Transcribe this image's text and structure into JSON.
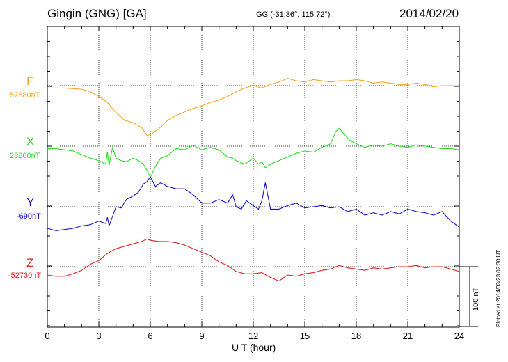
{
  "header": {
    "station": "Gingin (GNG)  [GA]",
    "coords": "GG (-31.36°, 115.72°)",
    "date": "2014/02/20"
  },
  "components": [
    {
      "id": "F",
      "label": "F",
      "baseline": "57880nT",
      "color": "#f5a623"
    },
    {
      "id": "X",
      "label": "X",
      "baseline": "23860nT",
      "color": "#22dd22"
    },
    {
      "id": "Y",
      "label": "Y",
      "baseline": "-690nT",
      "color": "#1010cc"
    },
    {
      "id": "Z",
      "label": "Z",
      "baseline": "-52730nT",
      "color": "#e02020"
    }
  ],
  "xaxis": {
    "label": "U T (hour)",
    "ticks": [
      "0",
      "3",
      "6",
      "9",
      "12",
      "15",
      "18",
      "21",
      "24"
    ]
  },
  "scale_bar": {
    "label": "100 nT",
    "value_nT": 100
  },
  "footer": {
    "plotted": "Plotted at 2014/03/23 02:30 UT"
  },
  "chart_data": {
    "type": "line",
    "x_unit": "hour UT",
    "xlim": [
      0,
      24
    ],
    "y_unit": "nT offset from baseline",
    "series": [
      {
        "name": "F",
        "x": [
          0,
          1,
          2,
          2.5,
          3,
          3.5,
          4,
          4.5,
          5,
          5.5,
          5.8,
          6,
          6.5,
          7,
          7.5,
          8,
          8.5,
          9,
          9.5,
          10,
          10.5,
          11,
          11.5,
          12,
          12.5,
          13,
          13.5,
          14,
          14.5,
          15,
          15.5,
          16,
          16.5,
          17,
          17.5,
          18,
          18.5,
          19,
          19.5,
          20,
          20.5,
          21,
          21.5,
          22,
          22.5,
          23,
          23.5,
          24
        ],
        "y": [
          -4,
          -4,
          -6,
          -10,
          -18,
          -28,
          -45,
          -58,
          -62,
          -70,
          -83,
          -82,
          -72,
          -58,
          -50,
          -44,
          -38,
          -34,
          -28,
          -24,
          -18,
          -10,
          -4,
          0,
          -4,
          2,
          6,
          12,
          8,
          6,
          10,
          8,
          6,
          8,
          8,
          10,
          8,
          4,
          6,
          4,
          2,
          2,
          4,
          2,
          -2,
          0,
          0,
          0
        ]
      },
      {
        "name": "X",
        "x": [
          0,
          0.5,
          1,
          1.5,
          2,
          2.5,
          3,
          3.4,
          3.5,
          3.6,
          3.8,
          4,
          4.3,
          4.6,
          5,
          5.3,
          5.6,
          5.8,
          6,
          6.3,
          6.6,
          7,
          7.5,
          8,
          8.5,
          9,
          9.5,
          10,
          10.5,
          10.8,
          11,
          11.5,
          12,
          12.3,
          12.5,
          12.7,
          13,
          13.5,
          14,
          14.5,
          15,
          15.5,
          16,
          16.5,
          16.8,
          17,
          17.3,
          17.6,
          18,
          18.5,
          19,
          19.5,
          20,
          20.5,
          21,
          21.5,
          22,
          22.5,
          23,
          23.5,
          24
        ],
        "y": [
          -4,
          -4,
          -6,
          -8,
          -14,
          -20,
          -24,
          -30,
          -10,
          -32,
          -2,
          -20,
          -24,
          -26,
          -20,
          -24,
          -30,
          -40,
          -52,
          -34,
          -20,
          -16,
          -4,
          -6,
          2,
          -6,
          -2,
          -6,
          -18,
          -20,
          -24,
          -30,
          -20,
          -30,
          -26,
          -36,
          -30,
          -24,
          -18,
          -12,
          -8,
          -10,
          -2,
          4,
          24,
          30,
          20,
          10,
          4,
          -2,
          2,
          0,
          4,
          0,
          -2,
          2,
          0,
          -2,
          -4,
          -4,
          -6
        ]
      },
      {
        "name": "Y",
        "x": [
          0,
          0.5,
          1,
          1.5,
          2,
          2.5,
          3,
          3.4,
          3.5,
          3.6,
          4,
          4.3,
          4.6,
          5,
          5.3,
          5.6,
          5.8,
          6,
          6.3,
          6.6,
          7,
          7.5,
          8,
          8.5,
          9,
          9.5,
          10,
          10.5,
          10.8,
          11,
          11.3,
          11.6,
          12,
          12.3,
          12.5,
          12.7,
          13,
          13.5,
          14,
          14.5,
          15,
          15.5,
          16,
          16.5,
          17,
          17.5,
          18,
          18.5,
          19,
          19.5,
          20,
          20.5,
          21,
          21.5,
          22,
          22.5,
          23,
          23.5,
          24
        ],
        "y": [
          -36,
          -40,
          -38,
          -36,
          -32,
          -30,
          -24,
          -28,
          -18,
          -32,
          0,
          -2,
          12,
          18,
          24,
          38,
          42,
          50,
          34,
          40,
          34,
          30,
          30,
          20,
          6,
          6,
          12,
          6,
          20,
          0,
          -4,
          10,
          2,
          -4,
          10,
          40,
          -4,
          -4,
          2,
          6,
          -2,
          0,
          2,
          -2,
          0,
          -8,
          -4,
          -14,
          -10,
          -14,
          -8,
          -12,
          -4,
          -8,
          -10,
          -14,
          -8,
          -24,
          -34
        ]
      },
      {
        "name": "Z",
        "x": [
          0,
          0.5,
          1,
          1.5,
          2,
          2.5,
          3,
          3.5,
          4,
          4.5,
          5,
          5.5,
          5.8,
          6,
          6.5,
          7,
          7.5,
          8,
          8.5,
          9,
          9.5,
          10,
          10.5,
          11,
          11.5,
          12,
          12.5,
          13,
          13.5,
          14,
          14.5,
          15,
          15.5,
          16,
          16.5,
          17,
          17.5,
          18,
          18.5,
          19,
          19.5,
          20,
          20.5,
          21,
          21.5,
          22,
          22.5,
          23,
          23.5,
          24
        ],
        "y": [
          -14,
          -16,
          -16,
          -12,
          -6,
          4,
          10,
          22,
          30,
          34,
          38,
          42,
          46,
          44,
          42,
          42,
          40,
          36,
          30,
          24,
          18,
          8,
          2,
          -8,
          -12,
          -12,
          -10,
          -18,
          -24,
          -14,
          -16,
          -12,
          -10,
          -6,
          -4,
          2,
          -2,
          -4,
          -6,
          -2,
          -4,
          -2,
          0,
          0,
          2,
          -2,
          0,
          0,
          -4,
          -8
        ]
      }
    ]
  }
}
